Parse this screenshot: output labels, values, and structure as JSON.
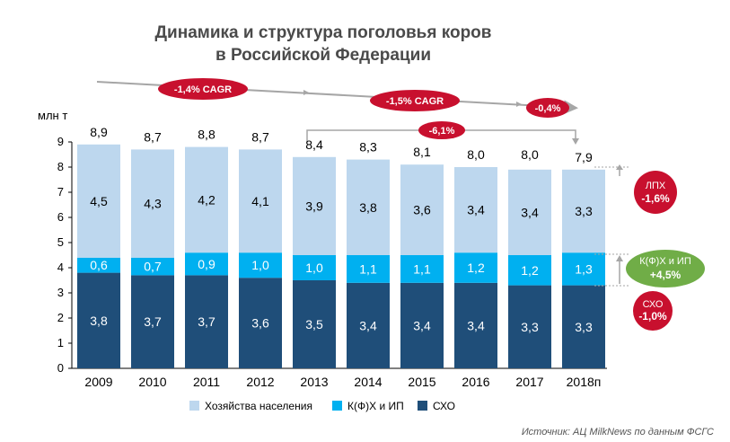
{
  "title": {
    "line1": "Динамика и структура поголовья коров",
    "line2": "в Российской Федерации"
  },
  "source": "Источник: АЦ MilkNews по данным ФСГС",
  "colors": {
    "households": "#bdd7ee",
    "farms": "#00b0f0",
    "agri": "#1f4e79",
    "badge_red": "#c8102e",
    "badge_green": "#70ad47",
    "arrow_gray": "#a6a6a6"
  },
  "chart_data": {
    "type": "bar",
    "stacked": true,
    "unit_label": "млн т",
    "categories": [
      "2009",
      "2010",
      "2011",
      "2012",
      "2013",
      "2014",
      "2015",
      "2016",
      "2017",
      "2018п"
    ],
    "series": [
      {
        "name": "СХО",
        "values": [
          3.8,
          3.7,
          3.7,
          3.6,
          3.5,
          3.4,
          3.4,
          3.4,
          3.3,
          3.3
        ],
        "labels": [
          "3,8",
          "3,7",
          "3,7",
          "3,6",
          "3,5",
          "3,4",
          "3,4",
          "3,4",
          "3,3",
          "3,3"
        ]
      },
      {
        "name": "К(Ф)Х и ИП",
        "values": [
          0.6,
          0.7,
          0.9,
          1.0,
          1.0,
          1.1,
          1.1,
          1.2,
          1.2,
          1.3
        ],
        "labels": [
          "0,6",
          "0,7",
          "0,9",
          "1,0",
          "1,0",
          "1,1",
          "1,1",
          "1,2",
          "1,2",
          "1,3"
        ]
      },
      {
        "name": "Хозяйства населения",
        "values": [
          4.5,
          4.3,
          4.2,
          4.1,
          3.9,
          3.8,
          3.6,
          3.4,
          3.4,
          3.3
        ],
        "labels": [
          "4,5",
          "4,3",
          "4,2",
          "4,1",
          "3,9",
          "3,8",
          "3,6",
          "3,4",
          "3,4",
          "3,3"
        ]
      }
    ],
    "totals": [
      8.9,
      8.7,
      8.8,
      8.7,
      8.4,
      8.3,
      8.1,
      8.0,
      8.0,
      7.9
    ],
    "total_labels": [
      "8,9",
      "8,7",
      "8,8",
      "8,7",
      "8,4",
      "8,3",
      "8,1",
      "8,0",
      "8,0",
      "7,9"
    ],
    "ylim": [
      0,
      9
    ],
    "yticks": [
      0,
      1,
      2,
      3,
      4,
      5,
      6,
      7,
      8,
      9
    ],
    "legend": {
      "position": "bottom",
      "order": [
        "Хозяйства населения",
        "К(Ф)Х и ИП",
        "СХО"
      ]
    },
    "annotations": {
      "cagr_1": "-1,4% CAGR",
      "cagr_2": "-1,5% CAGR",
      "last_year_change": "-0,4%",
      "change_2013_2018": "-6,1%",
      "households_badge": {
        "label": "ЛПХ",
        "value": "-1,6%"
      },
      "farms_badge": {
        "label": "К(Ф)Х и ИП",
        "value": "+4,5%"
      },
      "agri_badge": {
        "label": "СХО",
        "value": "-1,0%"
      }
    }
  }
}
